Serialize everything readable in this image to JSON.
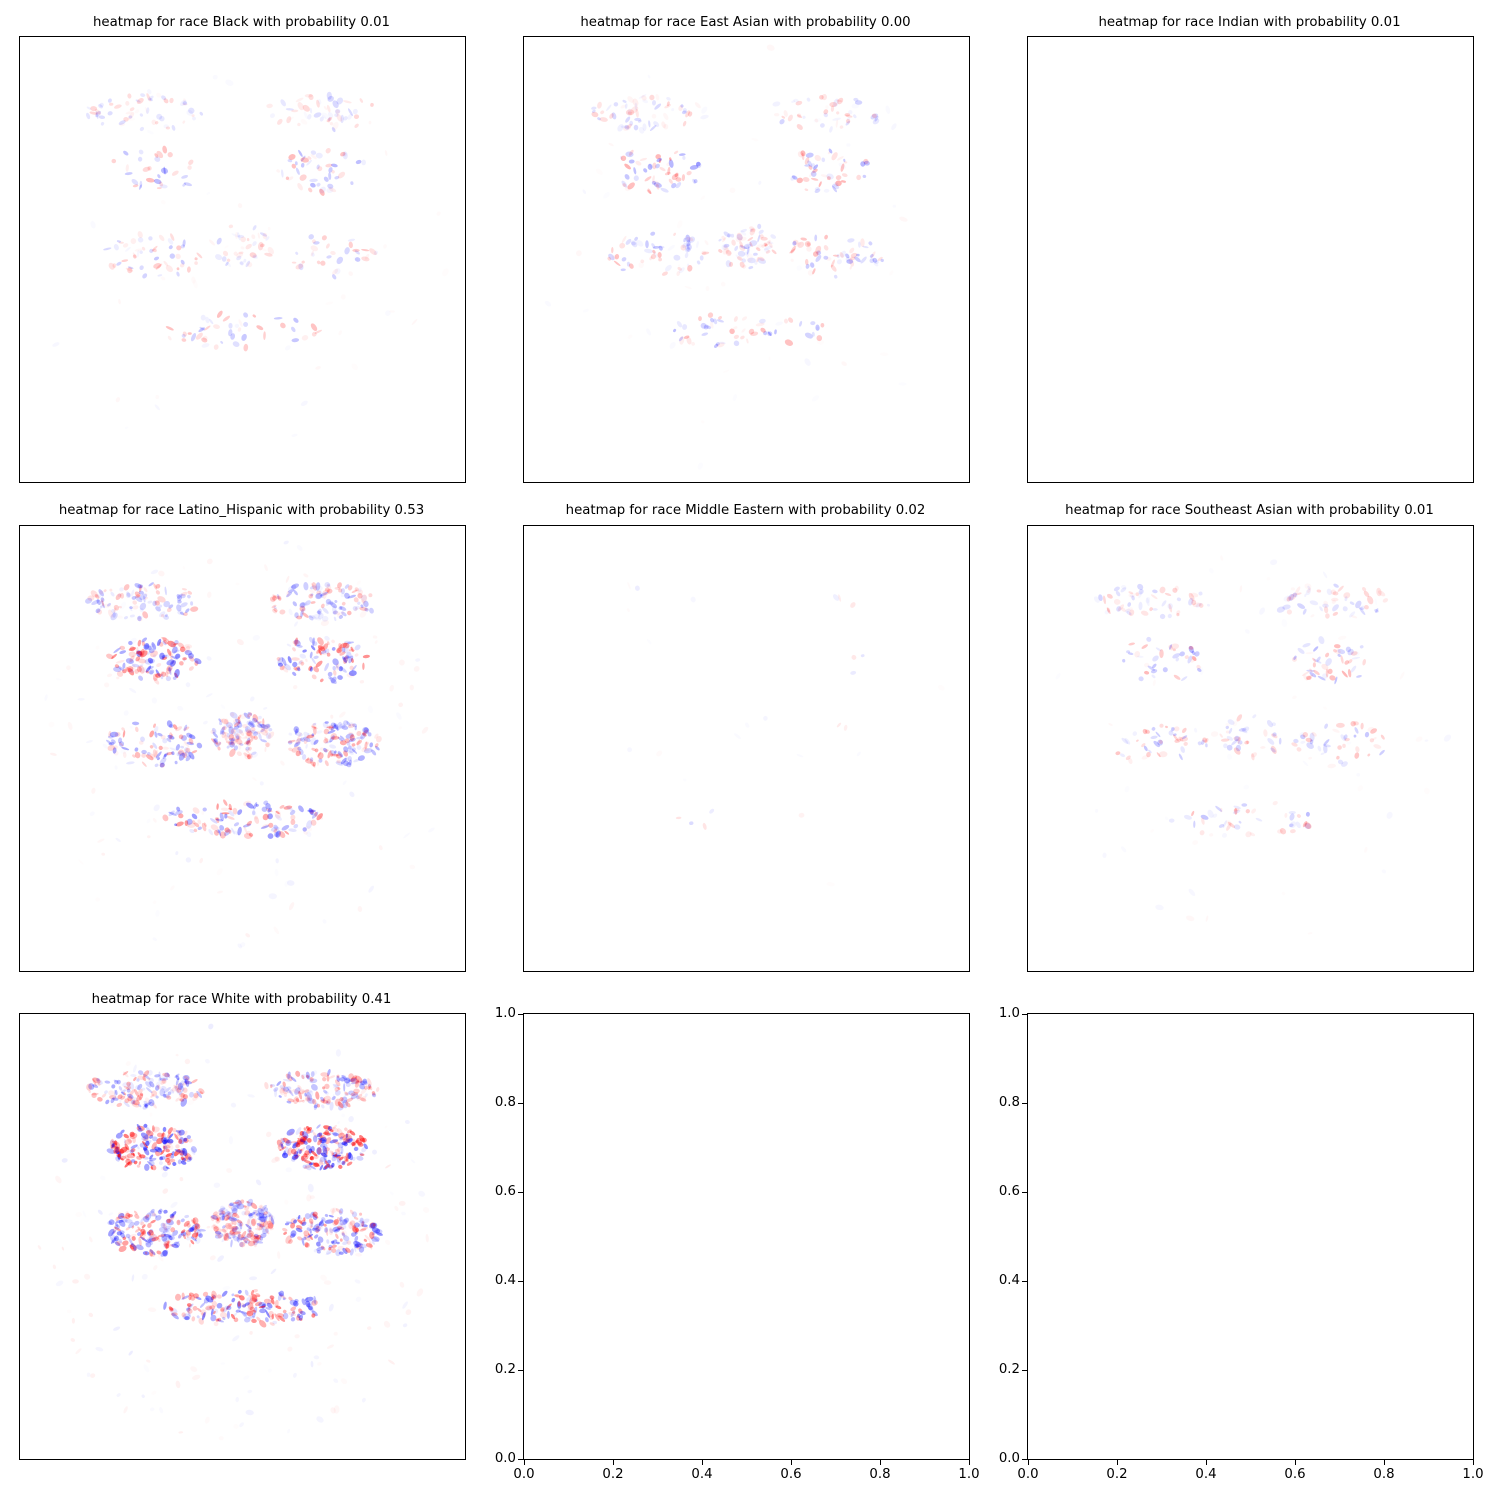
{
  "chart_data": [
    {
      "type": "heatmap",
      "title": "heatmap for race Black with probability 0.01",
      "colormap": "bwr",
      "intensity": 0.28,
      "axes_ticks": false
    },
    {
      "type": "heatmap",
      "title": "heatmap for race East Asian with probability 0.00",
      "colormap": "bwr",
      "intensity": 0.35,
      "axes_ticks": false
    },
    {
      "type": "heatmap",
      "title": "heatmap for race Indian with probability 0.01",
      "colormap": "bwr",
      "intensity": 0.0,
      "axes_ticks": false
    },
    {
      "type": "heatmap",
      "title": "heatmap for race Latino_Hispanic with probability 0.53",
      "colormap": "bwr",
      "intensity": 0.7,
      "axes_ticks": false
    },
    {
      "type": "heatmap",
      "title": "heatmap for race Middle Eastern with probability 0.02",
      "colormap": "bwr",
      "intensity": 0.02,
      "axes_ticks": false
    },
    {
      "type": "heatmap",
      "title": "heatmap for race Southeast Asian with probability 0.01",
      "colormap": "bwr",
      "intensity": 0.3,
      "axes_ticks": false
    },
    {
      "type": "heatmap",
      "title": "heatmap for race White with probability 0.41",
      "colormap": "bwr",
      "intensity": 1.0,
      "axes_ticks": false
    },
    {
      "type": "empty",
      "title": "",
      "xlim": [
        0,
        1
      ],
      "ylim": [
        0,
        1
      ],
      "xticks": [
        "0.0",
        "0.2",
        "0.4",
        "0.6",
        "0.8",
        "1.0"
      ],
      "yticks": [
        "0.0",
        "0.2",
        "0.4",
        "0.6",
        "0.8",
        "1.0"
      ]
    },
    {
      "type": "empty",
      "title": "",
      "xlim": [
        0,
        1
      ],
      "ylim": [
        0,
        1
      ],
      "xticks": [
        "0.0",
        "0.2",
        "0.4",
        "0.6",
        "0.8",
        "1.0"
      ],
      "yticks": [
        "0.0",
        "0.2",
        "0.4",
        "0.6",
        "0.8",
        "1.0"
      ]
    }
  ],
  "colors": {
    "positive": "#ff0000",
    "negative": "#0000ff",
    "neutral": "#ffffff",
    "frame": "#000000"
  }
}
